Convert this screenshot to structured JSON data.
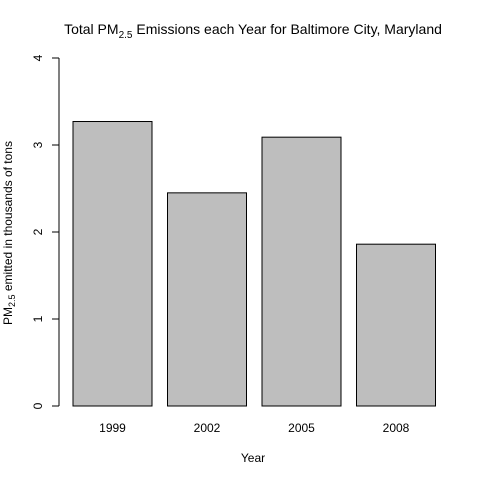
{
  "chart_data": {
    "type": "bar",
    "title": {
      "prefix": "Total PM",
      "subscript": "2.5",
      "suffix": " Emissions each Year for Baltimore City, Maryland"
    },
    "xlabel": "Year",
    "ylabel": {
      "prefix": "PM",
      "subscript": "2.5",
      "suffix": " emitted in thousands of tons"
    },
    "categories": [
      "1999",
      "2002",
      "2005",
      "2008"
    ],
    "values": [
      3.27,
      2.45,
      3.09,
      1.86
    ],
    "ylim": [
      0,
      4
    ],
    "yticks": [
      0,
      1,
      2,
      3,
      4
    ],
    "bar_color": "#bebebe",
    "bar_edge_color": "#000000",
    "grid": false,
    "legend": "none"
  }
}
